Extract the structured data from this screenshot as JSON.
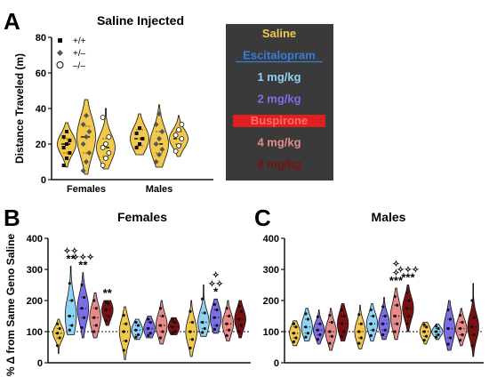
{
  "panel_a": {
    "letter": "A",
    "title": "Saline Injected",
    "ylabel": "Distance Traveled (m)",
    "legend": [
      {
        "symbol": "square",
        "label": "+/+"
      },
      {
        "symbol": "diamond",
        "label": "+/–"
      },
      {
        "symbol": "circle",
        "label": "–/–"
      }
    ]
  },
  "panel_b": {
    "letter": "B",
    "title": "Females",
    "ylabel": "% Δ from Same Geno Saline"
  },
  "panel_c": {
    "letter": "C",
    "title": "Males"
  },
  "drug_legend": {
    "bg_color": "#3a3a3a",
    "items": [
      {
        "label": "Saline",
        "color": "#f2c94c",
        "style": "plain"
      },
      {
        "label": "Escitalopram",
        "color": "#3a7bd5",
        "style": "underline"
      },
      {
        "label": "1 mg/kg",
        "color": "#8fd3f4",
        "style": "plain"
      },
      {
        "label": "2 mg/kg",
        "color": "#7b6fe8",
        "style": "plain"
      },
      {
        "label": "Buspirone",
        "color": "#e02020",
        "style": "highlight"
      },
      {
        "label": "4 mg/kg",
        "color": "#e78a8a",
        "style": "plain"
      },
      {
        "label": "8 mg/kg",
        "color": "#7a1010",
        "style": "plain"
      }
    ]
  },
  "chart_data": [
    {
      "type": "violin",
      "title": "Saline Injected",
      "ylabel": "Distance Traveled (m)",
      "ylim": [
        0,
        80
      ],
      "yticks": [
        "0",
        "20",
        "40",
        "60",
        "80"
      ],
      "groups": [
        "Females",
        "Males"
      ],
      "series": [
        {
          "group": "Females",
          "genotype": "+/+",
          "color": "#f2c94c",
          "median": 20,
          "q1": 15,
          "q3": 23,
          "min": 7,
          "max": 32,
          "points": [
            8,
            12,
            15,
            18,
            20,
            22,
            24,
            27
          ]
        },
        {
          "group": "Females",
          "genotype": "+/–",
          "color": "#f2c94c",
          "median": 24,
          "q1": 15,
          "q3": 30,
          "min": 3,
          "max": 45,
          "points": [
            5,
            10,
            15,
            20,
            24,
            27,
            31,
            36
          ]
        },
        {
          "group": "Females",
          "genotype": "–/–",
          "color": "#f2c94c",
          "median": 18,
          "q1": 13,
          "q3": 23,
          "min": 6,
          "max": 40,
          "points": [
            8,
            12,
            15,
            18,
            20,
            24,
            35
          ]
        },
        {
          "group": "Males",
          "genotype": "+/+",
          "color": "#f2c94c",
          "median": 23,
          "q1": 19,
          "q3": 28,
          "min": 14,
          "max": 37,
          "points": [
            18,
            20,
            23,
            26,
            29
          ]
        },
        {
          "group": "Males",
          "genotype": "+/–",
          "color": "#f2c94c",
          "median": 20,
          "q1": 15,
          "q3": 27,
          "min": 7,
          "max": 42,
          "points": [
            10,
            14,
            17,
            20,
            23,
            27,
            31,
            37
          ]
        },
        {
          "group": "Males",
          "genotype": "–/–",
          "color": "#f2c94c",
          "median": 23,
          "q1": 20,
          "q3": 27,
          "min": 13,
          "max": 36,
          "points": [
            16,
            19,
            23,
            25,
            28,
            31
          ]
        }
      ]
    },
    {
      "type": "violin",
      "title": "Females",
      "ylabel": "% Δ from Same Geno Saline",
      "ylim": [
        0,
        400
      ],
      "yticks": [
        "0",
        "100",
        "200",
        "300",
        "400"
      ],
      "reference_line": 100,
      "violins": [
        {
          "genotype": "+/+",
          "treatment": "Saline",
          "color": "#f2c94c",
          "median": 95,
          "q1": 80,
          "q3": 110,
          "min": 30,
          "max": 140
        },
        {
          "genotype": "+/+",
          "treatment": "Escitalopram 1 mg/kg",
          "color": "#8fd3f4",
          "median": 150,
          "q1": 120,
          "q3": 200,
          "min": 90,
          "max": 310,
          "label": "✧✧\n**"
        },
        {
          "genotype": "+/+",
          "treatment": "Escitalopram 2 mg/kg",
          "color": "#7b6fe8",
          "median": 175,
          "q1": 145,
          "q3": 210,
          "min": 80,
          "max": 290,
          "label": "✧✧✧\n**"
        },
        {
          "genotype": "+/+",
          "treatment": "Buspirone 4 mg/kg",
          "color": "#e78a8a",
          "median": 145,
          "q1": 120,
          "q3": 175,
          "min": 80,
          "max": 225
        },
        {
          "genotype": "+/+",
          "treatment": "Buspirone 8 mg/kg",
          "color": "#7a1010",
          "median": 170,
          "q1": 150,
          "q3": 190,
          "min": 120,
          "max": 200,
          "label": "**"
        },
        {
          "genotype": "+/–",
          "treatment": "Saline",
          "color": "#f2c94c",
          "median": 100,
          "q1": 70,
          "q3": 125,
          "min": 10,
          "max": 180
        },
        {
          "genotype": "+/–",
          "treatment": "Escitalopram 1 mg/kg",
          "color": "#8fd3f4",
          "median": 105,
          "q1": 90,
          "q3": 120,
          "min": 75,
          "max": 140
        },
        {
          "genotype": "+/–",
          "treatment": "Escitalopram 2 mg/kg",
          "color": "#7b6fe8",
          "median": 110,
          "q1": 95,
          "q3": 130,
          "min": 80,
          "max": 150
        },
        {
          "genotype": "+/–",
          "treatment": "Buspirone 4 mg/kg",
          "color": "#e78a8a",
          "median": 120,
          "q1": 100,
          "q3": 150,
          "min": 60,
          "max": 200
        },
        {
          "genotype": "+/–",
          "treatment": "Buspirone 8 mg/kg",
          "color": "#7a1010",
          "median": 115,
          "q1": 100,
          "q3": 130,
          "min": 90,
          "max": 145
        },
        {
          "genotype": "–/–",
          "treatment": "Saline",
          "color": "#f2c94c",
          "median": 100,
          "q1": 75,
          "q3": 130,
          "min": 20,
          "max": 200
        },
        {
          "genotype": "–/–",
          "treatment": "Escitalopram 1 mg/kg",
          "color": "#8fd3f4",
          "median": 130,
          "q1": 110,
          "q3": 160,
          "min": 85,
          "max": 250
        },
        {
          "genotype": "–/–",
          "treatment": "Escitalopram 2 mg/kg",
          "color": "#7b6fe8",
          "median": 145,
          "q1": 120,
          "q3": 170,
          "min": 95,
          "max": 205,
          "label": "✧\n✧✧\n*"
        },
        {
          "genotype": "–/–",
          "treatment": "Buspirone 4 mg/kg",
          "color": "#e78a8a",
          "median": 125,
          "q1": 105,
          "q3": 150,
          "min": 70,
          "max": 200
        },
        {
          "genotype": "–/–",
          "treatment": "Buspirone 8 mg/kg",
          "color": "#7a1010",
          "median": 140,
          "q1": 120,
          "q3": 165,
          "min": 80,
          "max": 200
        }
      ]
    },
    {
      "type": "violin",
      "title": "Males",
      "ylim": [
        0,
        400
      ],
      "yticks": [
        "0",
        "100",
        "200",
        "300",
        "400"
      ],
      "reference_line": 100,
      "violins": [
        {
          "genotype": "+/+",
          "treatment": "Saline",
          "color": "#f2c94c",
          "median": 95,
          "q1": 80,
          "q3": 115,
          "min": 55,
          "max": 135
        },
        {
          "genotype": "+/+",
          "treatment": "Escitalopram 1 mg/kg",
          "color": "#8fd3f4",
          "median": 115,
          "q1": 95,
          "q3": 140,
          "min": 70,
          "max": 175
        },
        {
          "genotype": "+/+",
          "treatment": "Escitalopram 2 mg/kg",
          "color": "#7b6fe8",
          "median": 105,
          "q1": 90,
          "q3": 125,
          "min": 60,
          "max": 170
        },
        {
          "genotype": "+/+",
          "treatment": "Buspirone 4 mg/kg",
          "color": "#e78a8a",
          "median": 100,
          "q1": 85,
          "q3": 130,
          "min": 40,
          "max": 175
        },
        {
          "genotype": "+/+",
          "treatment": "Buspirone 8 mg/kg",
          "color": "#7a1010",
          "median": 125,
          "q1": 100,
          "q3": 150,
          "min": 70,
          "max": 190
        },
        {
          "genotype": "+/–",
          "treatment": "Saline",
          "color": "#f2c94c",
          "median": 100,
          "q1": 80,
          "q3": 125,
          "min": 45,
          "max": 185
        },
        {
          "genotype": "+/–",
          "treatment": "Escitalopram 1 mg/kg",
          "color": "#8fd3f4",
          "median": 125,
          "q1": 105,
          "q3": 150,
          "min": 70,
          "max": 190
        },
        {
          "genotype": "+/–",
          "treatment": "Escitalopram 2 mg/kg",
          "color": "#7b6fe8",
          "median": 125,
          "q1": 105,
          "q3": 150,
          "min": 75,
          "max": 210
        },
        {
          "genotype": "+/–",
          "treatment": "Buspirone 4 mg/kg",
          "color": "#e78a8a",
          "median": 150,
          "q1": 125,
          "q3": 185,
          "min": 75,
          "max": 240,
          "label": "✧\n✧\n***"
        },
        {
          "genotype": "+/–",
          "treatment": "Buspirone 8 mg/kg",
          "color": "#7a1010",
          "median": 175,
          "q1": 150,
          "q3": 200,
          "min": 100,
          "max": 250,
          "label": "✧✧✧\n***"
        },
        {
          "genotype": "–/–",
          "treatment": "Saline",
          "color": "#f2c94c",
          "median": 100,
          "q1": 85,
          "q3": 115,
          "min": 60,
          "max": 130
        },
        {
          "genotype": "–/–",
          "treatment": "Escitalopram 1 mg/kg",
          "color": "#8fd3f4",
          "median": 100,
          "q1": 90,
          "q3": 110,
          "min": 75,
          "max": 125
        },
        {
          "genotype": "–/–",
          "treatment": "Escitalopram 2 mg/kg",
          "color": "#7b6fe8",
          "median": 110,
          "q1": 80,
          "q3": 140,
          "min": 40,
          "max": 200
        },
        {
          "genotype": "–/–",
          "treatment": "Buspirone 4 mg/kg",
          "color": "#e78a8a",
          "median": 110,
          "q1": 90,
          "q3": 130,
          "min": 55,
          "max": 175
        },
        {
          "genotype": "–/–",
          "treatment": "Buspirone 8 mg/kg",
          "color": "#7a1010",
          "median": 115,
          "q1": 90,
          "q3": 145,
          "min": 20,
          "max": 255
        }
      ]
    }
  ]
}
